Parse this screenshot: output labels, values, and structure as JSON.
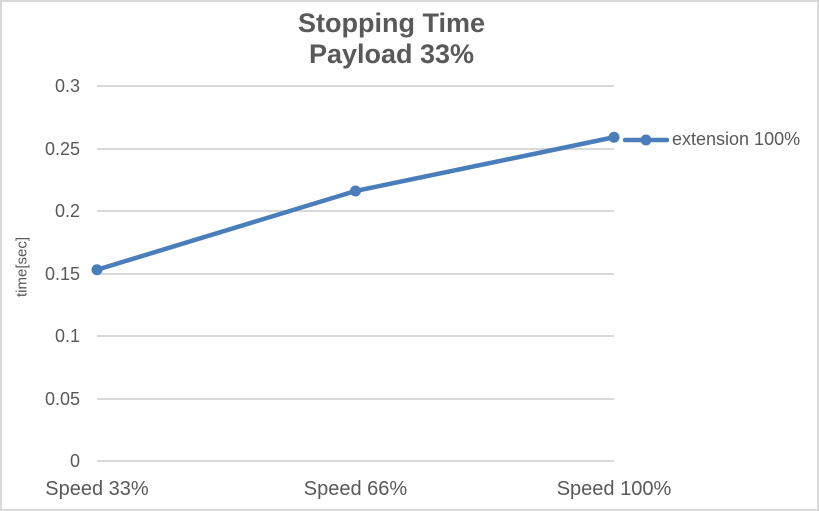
{
  "chart_data": {
    "type": "line",
    "title": "Stopping Time",
    "subtitle": "Payload 33%",
    "categories": [
      "Speed 33%",
      "Speed 66%",
      "Speed 100%"
    ],
    "series": [
      {
        "name": "extension 100%",
        "values": [
          0.153,
          0.216,
          0.259
        ],
        "color": "#4a7ebb"
      }
    ],
    "xlabel": "",
    "ylabel": "time[sec]",
    "ylim": [
      0,
      0.3
    ],
    "ytick_values": [
      0,
      0.05,
      0.1,
      0.15,
      0.2,
      0.25,
      0.3
    ],
    "ytick_labels": [
      "0",
      "0.05",
      "0.1",
      "0.15",
      "0.2",
      "0.25",
      "0.3"
    ],
    "grid": true,
    "legend_position": "right-middle",
    "colors": {
      "text": "#595959",
      "gridline": "#d9d9d9",
      "series": "#4a7ebb",
      "chart_border": "#d9d9d9",
      "background": "#ffffff"
    }
  }
}
